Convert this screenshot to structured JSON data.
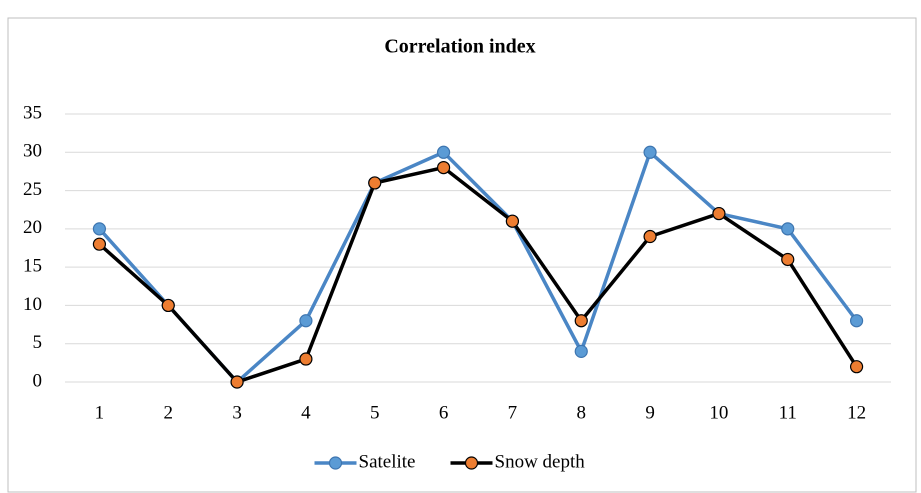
{
  "chart_data": {
    "type": "line",
    "title": "Correlation index",
    "categories": [
      "1",
      "2",
      "3",
      "4",
      "5",
      "6",
      "7",
      "8",
      "9",
      "10",
      "11",
      "12"
    ],
    "series": [
      {
        "name": "Satelite",
        "color": "#4a86c5",
        "marker_color": "#5b9bd5",
        "values": [
          20,
          10,
          0,
          8,
          26,
          30,
          21,
          4,
          30,
          22,
          20,
          8
        ]
      },
      {
        "name": "Snow depth",
        "color": "#000000",
        "marker_color": "#ed7d31",
        "values": [
          18,
          10,
          0,
          3,
          26,
          28,
          21,
          8,
          19,
          22,
          16,
          2
        ]
      }
    ],
    "ylim": [
      0,
      35
    ],
    "yticks": [
      0,
      5,
      10,
      15,
      20,
      25,
      30,
      35
    ],
    "grid": true,
    "legend": "bottom"
  }
}
